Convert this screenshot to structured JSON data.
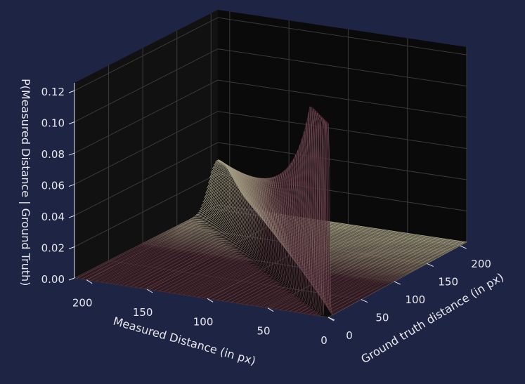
{
  "chart_data": {
    "type": "surface-3d",
    "xlabel": "Measured Distance (in px)",
    "ylabel": "Ground truth distance (in px)",
    "zlabel": "P(Measured Distance | Ground Truth)",
    "x_ticks": [
      "0",
      "50",
      "100",
      "150",
      "200"
    ],
    "y_ticks": [
      "0",
      "50",
      "100",
      "150",
      "200"
    ],
    "z_ticks": [
      "0.00",
      "0.02",
      "0.04",
      "0.06",
      "0.08",
      "0.10",
      "0.12"
    ],
    "xlim": [
      0,
      210
    ],
    "ylim": [
      0,
      210
    ],
    "zlim": [
      0,
      0.125
    ],
    "grid": true,
    "colors": {
      "figure_bg": "#1e2444",
      "pane": "#0a0a0a",
      "grid": "#3a3a3a",
      "surface_low": "#ffffff",
      "surface_mid": "#c8caa0",
      "surface_high": "#4a2530"
    },
    "surface_samples": [
      {
        "ground_truth": 2,
        "measured_distance": 2,
        "probability": 0.07
      },
      {
        "ground_truth": 20,
        "measured_distance": 20,
        "probability": 0.022
      },
      {
        "ground_truth": 100,
        "measured_distance": 100,
        "probability": 0.004
      },
      {
        "ground_truth": 200,
        "measured_distance": 200,
        "probability": 0.002
      },
      {
        "ground_truth": 0,
        "measured_distance": 200,
        "probability": 0.0
      }
    ]
  }
}
